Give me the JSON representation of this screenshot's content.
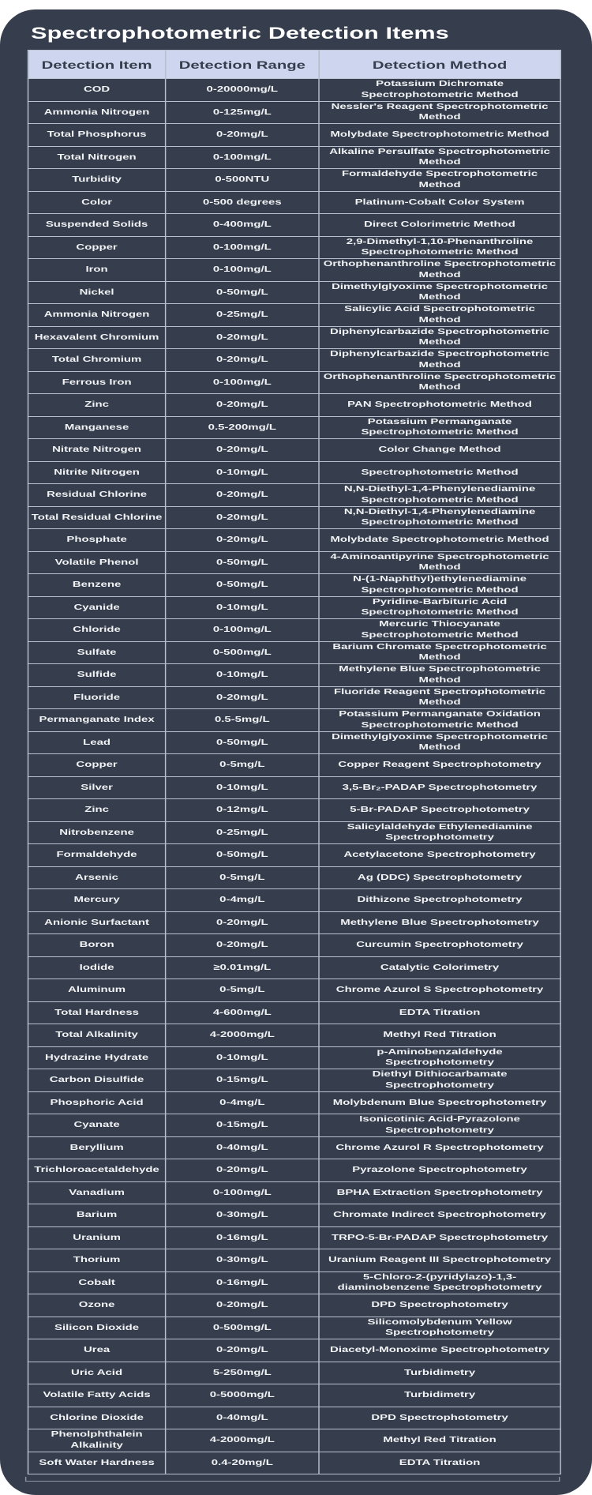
{
  "title": "Spectrophotometric Detection Items",
  "colors": {
    "background": "#363e4e",
    "header_bg": "#cdd6ee",
    "header_text": "#363e4e",
    "border": "#b9c1cf",
    "text": "#f2f3f5"
  },
  "table": {
    "headers": [
      "Detection Item",
      "Detection Range",
      "Detection Method"
    ],
    "rows": [
      [
        "COD",
        "0-20000mg/L",
        "Potassium Dichromate Spectrophotometric Method"
      ],
      [
        "Ammonia Nitrogen",
        "0-125mg/L",
        "Nessler's Reagent Spectrophotometric Method"
      ],
      [
        "Total Phosphorus",
        "0-20mg/L",
        "Molybdate Spectrophotometric Method"
      ],
      [
        "Total Nitrogen",
        "0-100mg/L",
        "Alkaline Persulfate Spectrophotometric Method"
      ],
      [
        "Turbidity",
        "0-500NTU",
        "Formaldehyde Spectrophotometric Method"
      ],
      [
        "Color",
        "0-500 degrees",
        "Platinum-Cobalt Color System"
      ],
      [
        "Suspended Solids",
        "0-400mg/L",
        "Direct Colorimetric Method"
      ],
      [
        "Copper",
        "0-100mg/L",
        "2,9-Dimethyl-1,10-Phenanthroline Spectrophotometric Method"
      ],
      [
        "Iron",
        "0-100mg/L",
        "Orthophenanthroline Spectrophotometric Method"
      ],
      [
        "Nickel",
        "0-50mg/L",
        "Dimethylglyoxime Spectrophotometric Method"
      ],
      [
        "Ammonia Nitrogen",
        "0-25mg/L",
        "Salicylic Acid Spectrophotometric Method"
      ],
      [
        "Hexavalent Chromium",
        "0-20mg/L",
        "Diphenylcarbazide Spectrophotometric Method"
      ],
      [
        "Total Chromium",
        "0-20mg/L",
        "Diphenylcarbazide Spectrophotometric Method"
      ],
      [
        "Ferrous Iron",
        "0-100mg/L",
        "Orthophenanthroline Spectrophotometric Method"
      ],
      [
        "Zinc",
        "0-20mg/L",
        "PAN Spectrophotometric Method"
      ],
      [
        "Manganese",
        "0.5-200mg/L",
        "Potassium Permanganate Spectrophotometric Method"
      ],
      [
        "Nitrate Nitrogen",
        "0-20mg/L",
        "Color Change Method"
      ],
      [
        "Nitrite Nitrogen",
        "0-10mg/L",
        "Spectrophotometric Method"
      ],
      [
        "Residual Chlorine",
        "0-20mg/L",
        "N,N-Diethyl-1,4-Phenylenediamine Spectrophotometric Method"
      ],
      [
        "Total Residual Chlorine",
        "0-20mg/L",
        "N,N-Diethyl-1,4-Phenylenediamine Spectrophotometric Method"
      ],
      [
        "Phosphate",
        "0-20mg/L",
        "Molybdate Spectrophotometric Method"
      ],
      [
        "Volatile Phenol",
        "0-50mg/L",
        "4-Aminoantipyrine Spectrophotometric Method"
      ],
      [
        "Benzene",
        "0-50mg/L",
        "N-(1-Naphthyl)ethylenediamine Spectrophotometric Method"
      ],
      [
        "Cyanide",
        "0-10mg/L",
        "Pyridine-Barbituric Acid Spectrophotometric Method"
      ],
      [
        "Chloride",
        "0-100mg/L",
        "Mercuric Thiocyanate Spectrophotometric Method"
      ],
      [
        "Sulfate",
        "0-500mg/L",
        "Barium Chromate Spectrophotometric Method"
      ],
      [
        "Sulfide",
        "0-10mg/L",
        "Methylene Blue Spectrophotometric Method"
      ],
      [
        "Fluoride",
        "0-20mg/L",
        "Fluoride Reagent Spectrophotometric Method"
      ],
      [
        "Permanganate Index",
        "0.5-5mg/L",
        "Potassium Permanganate Oxidation Spectrophotometric Method"
      ],
      [
        "Lead",
        "0-50mg/L",
        "Dimethylglyoxime Spectrophotometric Method"
      ],
      [
        "Copper",
        "0-5mg/L",
        "Copper Reagent Spectrophotometry"
      ],
      [
        "Silver",
        "0-10mg/L",
        "3,5-Br₂-PADAP Spectrophotometry"
      ],
      [
        "Zinc",
        "0-12mg/L",
        "5-Br-PADAP Spectrophotometry"
      ],
      [
        "Nitrobenzene",
        "0-25mg/L",
        "Salicylaldehyde Ethylenediamine Spectrophotometry"
      ],
      [
        "Formaldehyde",
        "0-50mg/L",
        "Acetylacetone Spectrophotometry"
      ],
      [
        "Arsenic",
        "0-5mg/L",
        "Ag (DDC) Spectrophotometry"
      ],
      [
        "Mercury",
        "0-4mg/L",
        "Dithizone Spectrophotometry"
      ],
      [
        "Anionic Surfactant",
        "0-20mg/L",
        "Methylene Blue Spectrophotometry"
      ],
      [
        "Boron",
        "0-20mg/L",
        "Curcumin Spectrophotometry"
      ],
      [
        "Iodide",
        "≥0.01mg/L",
        "Catalytic Colorimetry"
      ],
      [
        "Aluminum",
        "0-5mg/L",
        "Chrome Azurol S Spectrophotometry"
      ],
      [
        "Total Hardness",
        "4-600mg/L",
        "EDTA Titration"
      ],
      [
        "Total Alkalinity",
        "4-2000mg/L",
        "Methyl Red Titration"
      ],
      [
        "Hydrazine Hydrate",
        "0-10mg/L",
        "p-Aminobenzaldehyde Spectrophotometry"
      ],
      [
        "Carbon Disulfide",
        "0-15mg/L",
        "Diethyl Dithiocarbamate Spectrophotometry"
      ],
      [
        "Phosphoric Acid",
        "0-4mg/L",
        "Molybdenum Blue Spectrophotometry"
      ],
      [
        "Cyanate",
        "0-15mg/L",
        "Isonicotinic Acid-Pyrazolone Spectrophotometry"
      ],
      [
        "Beryllium",
        "0-40mg/L",
        "Chrome Azurol R Spectrophotometry"
      ],
      [
        "Trichloroacetaldehyde",
        "0-20mg/L",
        "Pyrazolone Spectrophotometry"
      ],
      [
        "Vanadium",
        "0-100mg/L",
        "BPHA Extraction Spectrophotometry"
      ],
      [
        "Barium",
        "0-30mg/L",
        "Chromate Indirect Spectrophotometry"
      ],
      [
        "Uranium",
        "0-16mg/L",
        "TRPO-5-Br-PADAP Spectrophotometry"
      ],
      [
        "Thorium",
        "0-30mg/L",
        "Uranium Reagent III Spectrophotometry"
      ],
      [
        "Cobalt",
        "0-16mg/L",
        "5-Chloro-2-(pyridylazo)-1,3-diaminobenzene Spectrophotometry"
      ],
      [
        "Ozone",
        "0-20mg/L",
        "DPD Spectrophotometry"
      ],
      [
        "Silicon Dioxide",
        "0-500mg/L",
        "Silicomolybdenum Yellow Spectrophotometry"
      ],
      [
        "Urea",
        "0-20mg/L",
        "Diacetyl-Monoxime Spectrophotometry"
      ],
      [
        "Uric Acid",
        "5-250mg/L",
        "Turbidimetry"
      ],
      [
        "Volatile Fatty Acids",
        "0-5000mg/L",
        "Turbidimetry"
      ],
      [
        "Chlorine Dioxide",
        "0-40mg/L",
        "DPD Spectrophotometry"
      ],
      [
        "Phenolphthalein Alkalinity",
        "4-2000mg/L",
        "Methyl Red Titration"
      ],
      [
        "Soft Water Hardness",
        "0.4-20mg/L",
        "EDTA Titration"
      ]
    ]
  }
}
